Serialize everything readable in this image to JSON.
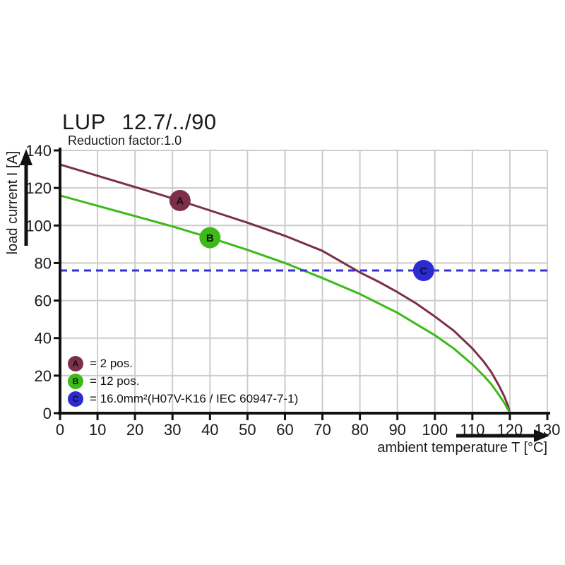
{
  "title": "LUP 12.7/../90",
  "subtitle": "Reduction factor:1.0",
  "chart_data": {
    "type": "line",
    "title": "LUP 12.7/../90",
    "subtitle": "Reduction factor:1.0",
    "xlabel": "ambient temperature T [°C]",
    "ylabel": "load current I [A]",
    "xlim": [
      0,
      130
    ],
    "ylim": [
      0,
      140
    ],
    "x_ticks": [
      0,
      10,
      20,
      30,
      40,
      50,
      60,
      70,
      80,
      90,
      100,
      110,
      120,
      130
    ],
    "y_ticks": [
      0,
      20,
      40,
      60,
      80,
      100,
      120,
      140
    ],
    "grid": true,
    "colors": {
      "maroon": "#7d2e49",
      "green": "#3cba17",
      "blue": "#2b2bd2",
      "dashed_blue": "#3232cc",
      "grid": "#cccccc",
      "axis": "#111111",
      "text": "#1a1a1a"
    },
    "series": [
      {
        "name": "2 pos.",
        "letter": "A",
        "color": "#7d2e49",
        "style": "solid",
        "points": [
          [
            0,
            132.5
          ],
          [
            10,
            126.5
          ],
          [
            20,
            120.5
          ],
          [
            30,
            114.5
          ],
          [
            40,
            108
          ],
          [
            50,
            101.5
          ],
          [
            60,
            94.5
          ],
          [
            70,
            86.5
          ],
          [
            80,
            75
          ],
          [
            85,
            70
          ],
          [
            90,
            64.5
          ],
          [
            95,
            58.5
          ],
          [
            100,
            51.5
          ],
          [
            105,
            44
          ],
          [
            110,
            34.5
          ],
          [
            113,
            27.5
          ],
          [
            115,
            22
          ],
          [
            117,
            15
          ],
          [
            118.5,
            9
          ],
          [
            119.5,
            4
          ],
          [
            120,
            0
          ]
        ]
      },
      {
        "name": "12 pos.",
        "letter": "B",
        "color": "#3cba17",
        "style": "solid",
        "points": [
          [
            0,
            116
          ],
          [
            10,
            110.5
          ],
          [
            20,
            105
          ],
          [
            30,
            99.5
          ],
          [
            40,
            93.5
          ],
          [
            50,
            87
          ],
          [
            60,
            80
          ],
          [
            70,
            72
          ],
          [
            80,
            63.5
          ],
          [
            85,
            58.5
          ],
          [
            90,
            53.5
          ],
          [
            95,
            47.5
          ],
          [
            100,
            41.5
          ],
          [
            105,
            34.5
          ],
          [
            110,
            26
          ],
          [
            113,
            20
          ],
          [
            115,
            15.5
          ],
          [
            117,
            10
          ],
          [
            118.5,
            5.5
          ],
          [
            119.5,
            2
          ],
          [
            120,
            0
          ]
        ]
      },
      {
        "name": "16.0mm²(H07V-K16 / IEC 60947-7-1)",
        "letter": "C",
        "color": "#3232cc",
        "style": "dashed",
        "y_const": 76
      }
    ],
    "markers": [
      {
        "letter": "A",
        "x": 32,
        "y": 113.3,
        "color": "#7d2e49"
      },
      {
        "letter": "B",
        "x": 40,
        "y": 93.5,
        "color": "#3cba17"
      },
      {
        "letter": "C",
        "x": 97,
        "y": 76,
        "color": "#2b2bd2"
      }
    ],
    "legend": [
      {
        "symbol": "A",
        "color": "#7d2e49",
        "label": "= 2 pos."
      },
      {
        "symbol": "B",
        "color": "#3cba17",
        "label": "= 12 pos."
      },
      {
        "symbol": "C",
        "color": "#2b2bd2",
        "label": "= 16.0mm²(H07V-K16 / IEC 60947-7-1)"
      }
    ],
    "legend_position": "bottom-left-inside"
  }
}
